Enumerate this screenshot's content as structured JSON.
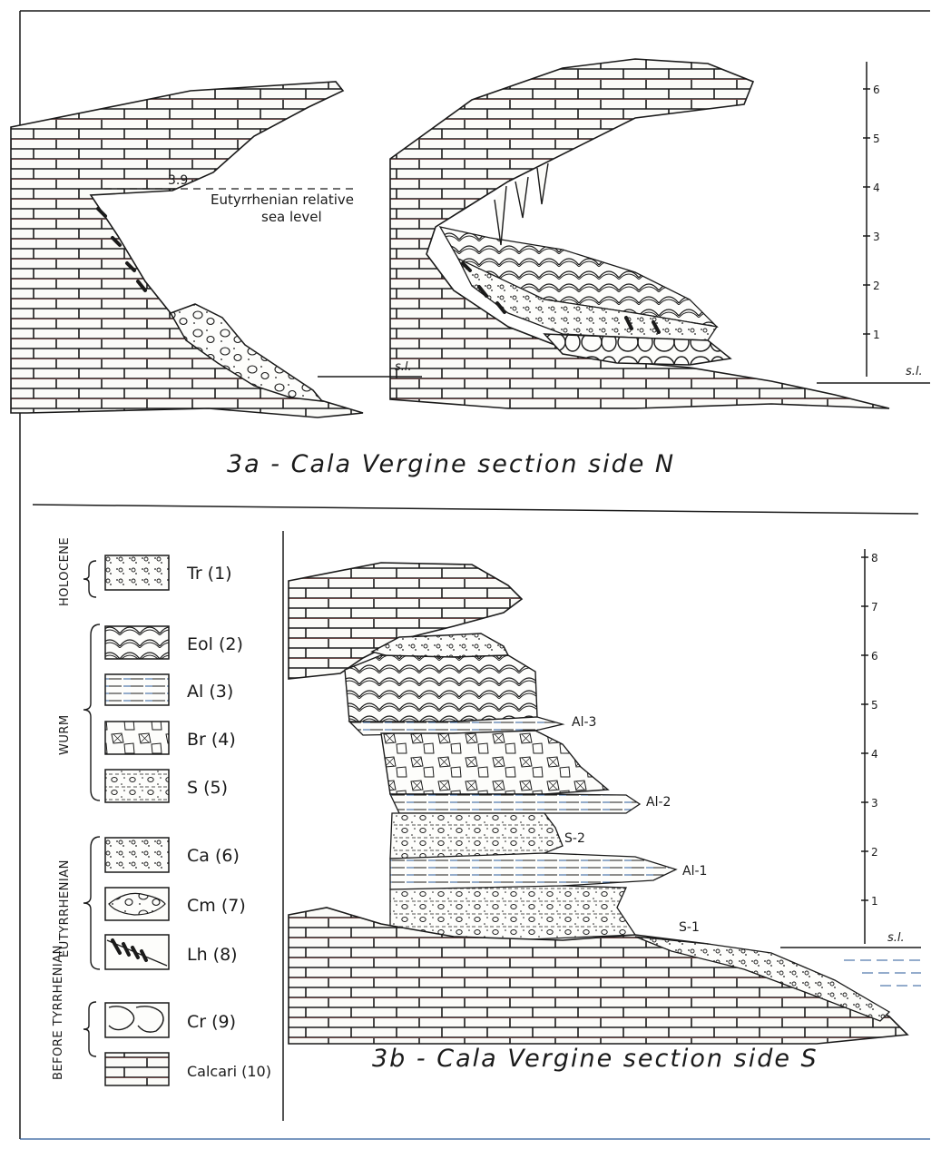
{
  "panel_a": {
    "caption": "3a - Cala Vergine section side N",
    "sea_level_value": "3.9",
    "sea_level_note_line1": "Eutyrrhenian relative",
    "sea_level_note_line2": "sea level",
    "sl_left": "s.l.",
    "sl_right": "s.l.",
    "scale_ticks": [
      "6",
      "5",
      "4",
      "3",
      "2",
      "1"
    ]
  },
  "panel_b": {
    "caption": "3b - Cala Vergine section side S",
    "sl": "s.l.",
    "scale_ticks": [
      "8",
      "7",
      "6",
      "5",
      "4",
      "3",
      "2",
      "1"
    ],
    "unit_labels": [
      "Al-3",
      "Al-2",
      "S-2",
      "Al-1",
      "S-1"
    ]
  },
  "legend": {
    "groups": [
      {
        "period": "HOLOCENE",
        "items": [
          {
            "code": "Tr (1)",
            "pattern": "talus"
          }
        ]
      },
      {
        "period": "WURM",
        "items": [
          {
            "code": "Eol (2)",
            "pattern": "eolian"
          },
          {
            "code": "Al (3)",
            "pattern": "alluvial"
          },
          {
            "code": "Br (4)",
            "pattern": "breccia"
          },
          {
            "code": "S (5)",
            "pattern": "sand"
          }
        ]
      },
      {
        "period": "EUTYRRHENIAN",
        "items": [
          {
            "code": "Ca (6)",
            "pattern": "calcarenite"
          },
          {
            "code": "Cm (7)",
            "pattern": "conglomerate"
          },
          {
            "code": "Lh (8)",
            "pattern": "lithophaga"
          }
        ]
      },
      {
        "period": "BEFORE TYRRHENIAN",
        "items": [
          {
            "code": "Cr (9)",
            "pattern": "crust"
          },
          {
            "code": "Calcari (10)",
            "pattern": "limestone"
          }
        ]
      }
    ]
  },
  "colors": {
    "ink": "#1a1a1a",
    "paper": "#ffffff",
    "accent_red": "#b03a3a",
    "accent_blue": "#2a5a9a"
  }
}
